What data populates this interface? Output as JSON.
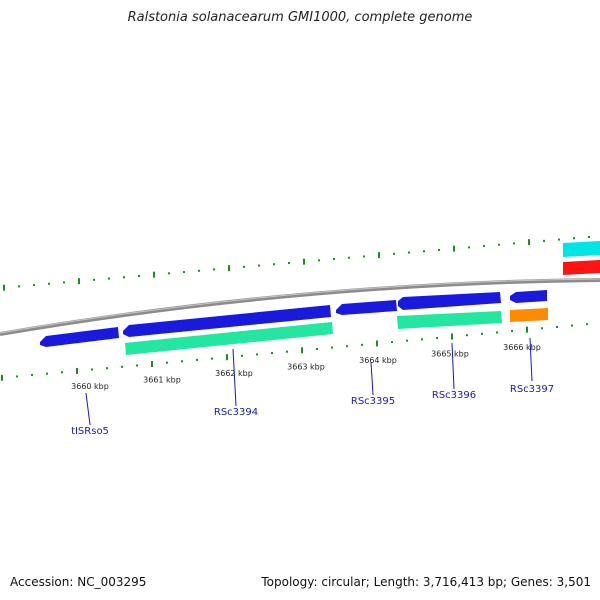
{
  "title": "Ralstonia solanacearum GMI1000, complete genome",
  "footer": {
    "accession": "Accession: NC_003295",
    "summary": "Topology: circular; Length: 3,716,413 bp; Genes: 3,501"
  },
  "colors": {
    "backbone": "#8c8c8c",
    "ticks": "#1e8c1e",
    "cds": "#1a1adc",
    "gene": "#23e6a0",
    "rrna": "#ff8c00",
    "trna": "#ff1414",
    "other": "#00e6e6",
    "label": "#1a1aaa"
  },
  "scale": {
    "positions_kbp": [
      3660,
      3661,
      3662,
      3663,
      3664,
      3665,
      3666
    ],
    "labels": [
      "3660 kbp",
      "3661 kbp",
      "3662 kbp",
      "3663 kbp",
      "3664 kbp",
      "3665 kbp",
      "3666 kbp"
    ]
  },
  "gene_labels": [
    "tISRso5",
    "RSc3394",
    "RSc3395",
    "RSc3396",
    "RSc3397"
  ]
}
